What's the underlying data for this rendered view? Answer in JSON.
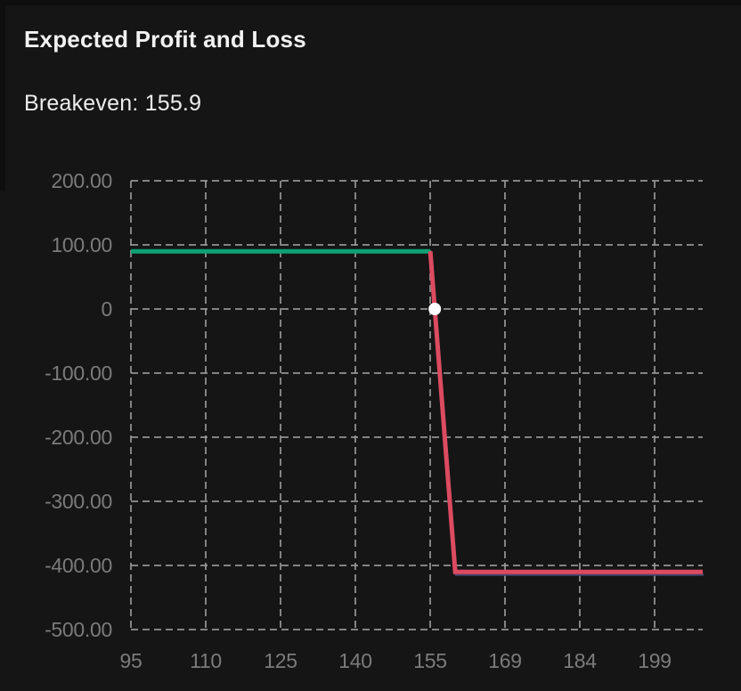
{
  "window": {
    "background": "#151515",
    "edge_color": "#0e0e0e"
  },
  "header": {
    "title": "Expected Profit and Loss",
    "breakeven_label": "Breakeven: 155.9"
  },
  "colors": {
    "profit_line": "#0da173",
    "loss_line": "#dc4b60",
    "loss_underlay": "#45426a",
    "grid": "#9c9c9c",
    "tick_text": "#7b7b7b",
    "title_text": "#f2f2f2",
    "marker": "#ffffff"
  },
  "chart_data": {
    "type": "line",
    "title": "Expected Profit and Loss",
    "breakeven": 155.9,
    "xlim": [
      95,
      209.6
    ],
    "ylim": [
      -500,
      200
    ],
    "grid": true,
    "legend": false,
    "x_ticks": [
      {
        "label": "95",
        "value": 95
      },
      {
        "label": "110",
        "value": 110
      },
      {
        "label": "125",
        "value": 125
      },
      {
        "label": "140",
        "value": 140
      },
      {
        "label": "155",
        "value": 155
      },
      {
        "label": "169",
        "value": 169
      },
      {
        "label": "184",
        "value": 184
      },
      {
        "label": "199",
        "value": 199
      }
    ],
    "y_ticks": [
      {
        "label": "200.00",
        "value": 200
      },
      {
        "label": "100.00",
        "value": 100
      },
      {
        "label": "0",
        "value": 0
      },
      {
        "label": "-100.00",
        "value": -100
      },
      {
        "label": "-200.00",
        "value": -200
      },
      {
        "label": "-300.00",
        "value": -300
      },
      {
        "label": "-400.00",
        "value": -400
      },
      {
        "label": "-500.00",
        "value": -500
      }
    ],
    "series": [
      {
        "name": "profit",
        "color_key": "profit_line",
        "values": [
          [
            95,
            90
          ],
          [
            155,
            90
          ]
        ]
      },
      {
        "name": "loss",
        "color_key": "loss_line",
        "values": [
          [
            155,
            90
          ],
          [
            160,
            -410
          ],
          [
            209.6,
            -410
          ]
        ]
      }
    ],
    "marker": {
      "name": "breakeven-point",
      "x": 155.9,
      "y": 0
    }
  }
}
